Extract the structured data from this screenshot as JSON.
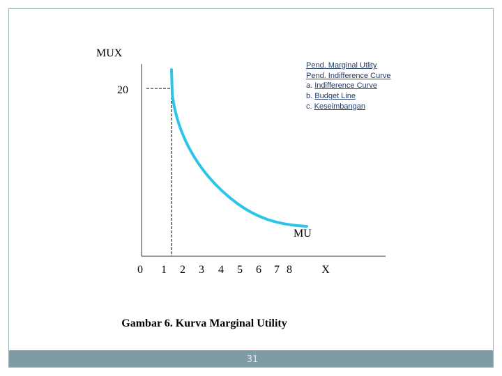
{
  "y_axis_label": "MUX",
  "y_mark": "20",
  "x_labels": [
    "0",
    "1",
    "2",
    "3",
    "4",
    "5",
    "6",
    "7",
    "8"
  ],
  "x_axis_label": "X",
  "curve_label": "MU",
  "links": [
    {
      "text": "Pend. Marginal Utlity"
    },
    {
      "text": "Pend. Indifference Curve"
    },
    {
      "prefix": "a.",
      "text": "Indifference Curve"
    },
    {
      "prefix": "b.",
      "text": "Budget Line"
    },
    {
      "prefix": "c.",
      "text": "Keseimbangan"
    }
  ],
  "caption": "Gambar 6. Kurva Marginal Utility",
  "page_number": "31"
}
